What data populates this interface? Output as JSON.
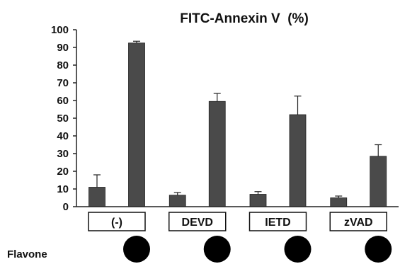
{
  "chart_data": {
    "type": "bar",
    "title": "FITC-Annexin V  (%)",
    "xlabel": "",
    "ylabel": "",
    "ylim": [
      0,
      100
    ],
    "yticks": [
      0,
      10,
      20,
      30,
      40,
      50,
      60,
      70,
      80,
      90,
      100
    ],
    "categories": [
      "(-)",
      "DEVD",
      "IETD",
      "zVAD"
    ],
    "row_label": "Flavone",
    "series": [
      {
        "name": "",
        "color": "#4a4a4a",
        "values": [
          11,
          6.5,
          7,
          5
        ],
        "errors": [
          7,
          1.5,
          1.5,
          1
        ]
      },
      {
        "name": "",
        "color": "#4a4a4a",
        "values": [
          92.5,
          59.5,
          52,
          28.5
        ],
        "errors": [
          1,
          4.5,
          10.5,
          6.5
        ]
      }
    ],
    "flavone_marker": [
      false,
      true
    ],
    "grid": false,
    "legend": "none"
  }
}
